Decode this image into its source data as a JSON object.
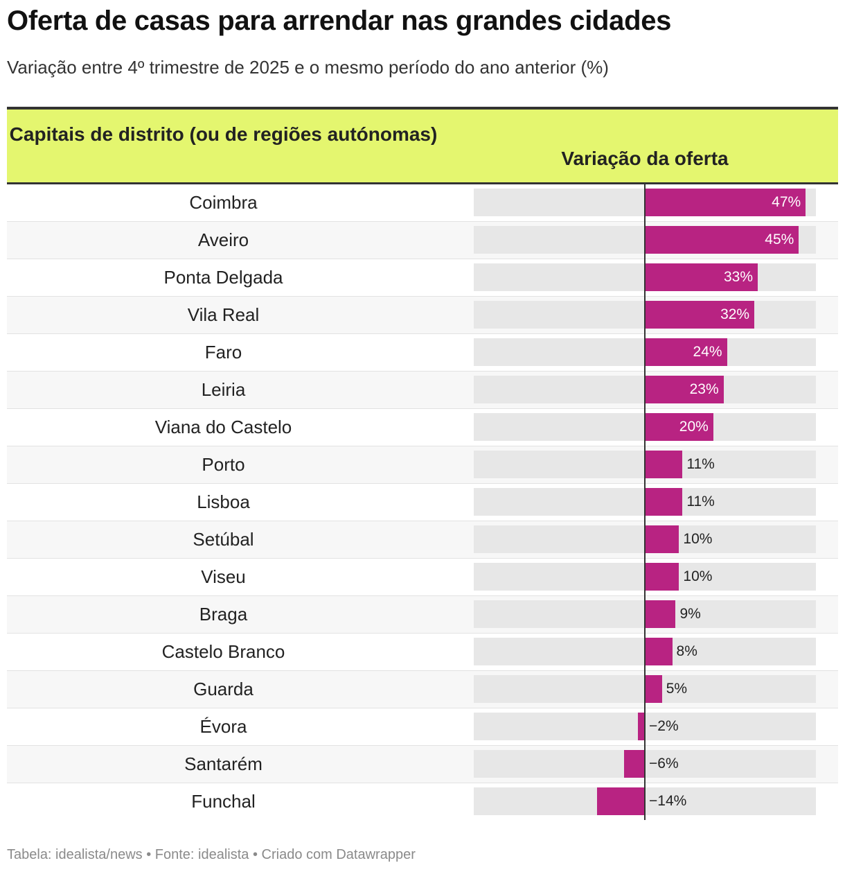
{
  "title": "Oferta de casas para arrendar nas grandes cidades",
  "subtitle": "Variação entre 4º trimestre de 2025 e o mesmo período do ano anterior (%)",
  "header": {
    "col1": "Capitais de distrito (ou de regiões autónomas)",
    "col2": "Variação da oferta"
  },
  "footer": "Tabela: idealista/news • Fonte: idealista • Criado com Datawrapper",
  "colors": {
    "bar": "#b82382",
    "header_bg": "#e4f66f",
    "track": "#e7e7e7"
  },
  "chart_data": {
    "type": "bar",
    "orientation": "horizontal",
    "title": "Oferta de casas para arrendar nas grandes cidades",
    "subtitle": "Variação entre 4º trimestre de 2025 e o mesmo período do ano anterior (%)",
    "xlabel": "Variação da oferta",
    "ylabel": "Capitais de distrito (ou de regiões autónomas)",
    "xlim": [
      -50,
      50
    ],
    "unit": "%",
    "categories": [
      "Coimbra",
      "Aveiro",
      "Ponta Delgada",
      "Vila Real",
      "Faro",
      "Leiria",
      "Viana do Castelo",
      "Porto",
      "Lisboa",
      "Setúbal",
      "Viseu",
      "Braga",
      "Castelo Branco",
      "Guarda",
      "Évora",
      "Santarém",
      "Funchal"
    ],
    "values": [
      47,
      45,
      33,
      32,
      24,
      23,
      20,
      11,
      11,
      10,
      10,
      9,
      8,
      5,
      -2,
      -6,
      -14
    ],
    "labels": [
      "47%",
      "45%",
      "33%",
      "32%",
      "24%",
      "23%",
      "20%",
      "11%",
      "11%",
      "10%",
      "10%",
      "9%",
      "8%",
      "5%",
      "−2%",
      "−6%",
      "−14%"
    ]
  }
}
